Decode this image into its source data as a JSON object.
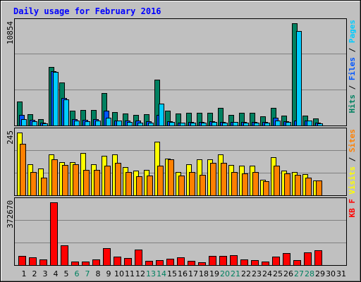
{
  "chart_data": [
    {
      "type": "bar",
      "title": "Daily usage for February 2016",
      "ymax_label": "10854",
      "legend": [
        "Pages",
        "Files",
        "Hits"
      ],
      "legend_separator": " / ",
      "legend_colors": {
        "Pages": "#00ccff",
        "Files": "#0055ff",
        "Hits": "#008060"
      },
      "series": [
        {
          "name": "Hits",
          "color": "#008060",
          "values": [
            2560,
            1180,
            700,
            6200,
            4550,
            1600,
            1650,
            1650,
            3450,
            1450,
            1250,
            1140,
            1200,
            4850,
            1540,
            1240,
            1380,
            1380,
            1320,
            1850,
            1090,
            1360,
            1320,
            1000,
            1850,
            1040,
            10854,
            1060,
            780
          ]
        },
        {
          "name": "Files",
          "color": "#0055ff",
          "values": [
            1150,
            600,
            300,
            5800,
            2900,
            700,
            580,
            700,
            1600,
            560,
            560,
            500,
            430,
            1100,
            440,
            320,
            340,
            380,
            430,
            390,
            410,
            390,
            410,
            380,
            840,
            460,
            560,
            550,
            330
          ]
        },
        {
          "name": "Pages",
          "color": "#00ccff",
          "values": [
            700,
            450,
            220,
            5700,
            2750,
            520,
            460,
            520,
            850,
            500,
            380,
            300,
            290,
            2300,
            400,
            280,
            300,
            330,
            380,
            330,
            350,
            320,
            330,
            300,
            560,
            380,
            10000,
            500,
            260
          ]
        }
      ]
    },
    {
      "type": "bar",
      "ymax_label": "245",
      "legend": [
        "Sites",
        "Visits"
      ],
      "legend_separator": " / ",
      "legend_colors": {
        "Sites": "#ff8000",
        "Visits": "#ffff00"
      },
      "series": [
        {
          "name": "Visits",
          "color": "#ffff00",
          "values": [
            245,
            120,
            105,
            160,
            130,
            130,
            165,
            120,
            155,
            160,
            110,
            95,
            100,
            210,
            143,
            92,
            122,
            140,
            140,
            160,
            118,
            115,
            115,
            60,
            150,
            95,
            92,
            82,
            58
          ]
        },
        {
          "name": "Sites",
          "color": "#ff8000",
          "values": [
            200,
            90,
            70,
            140,
            118,
            120,
            98,
            100,
            115,
            128,
            90,
            75,
            78,
            115,
            140,
            78,
            92,
            80,
            128,
            128,
            90,
            85,
            90,
            54,
            115,
            86,
            80,
            68,
            58
          ]
        }
      ]
    },
    {
      "type": "bar",
      "ymax_label": "372670",
      "legend": [
        "KB F"
      ],
      "legend_colors": {
        "KB F": "#ff0000"
      },
      "series": [
        {
          "name": "KB F",
          "color": "#ff0000",
          "values": [
            56000,
            46000,
            32000,
            372670,
            119000,
            20000,
            21000,
            32000,
            102000,
            50000,
            42000,
            91000,
            26000,
            31000,
            37000,
            45000,
            26000,
            17000,
            54000,
            53000,
            58000,
            32000,
            30000,
            19000,
            52000,
            70000,
            28000,
            74000,
            88000
          ]
        }
      ]
    }
  ],
  "x_ticks": [
    "1",
    "2",
    "3",
    "4",
    "5",
    "6",
    "7",
    "8",
    "9",
    "10",
    "11",
    "12",
    "13",
    "14",
    "15",
    "16",
    "17",
    "18",
    "19",
    "20",
    "21",
    "22",
    "23",
    "24",
    "25",
    "26",
    "27",
    "28",
    "29",
    "30",
    "31"
  ],
  "weekend_days": [
    "6",
    "7",
    "13",
    "14",
    "20",
    "21",
    "27",
    "28"
  ],
  "colors": {
    "background": "#c0c0c0",
    "frame": "#000000",
    "title": "#0000ff",
    "grid": "#808080",
    "tick_weekday": "#000000",
    "tick_weekend": "#008060"
  }
}
